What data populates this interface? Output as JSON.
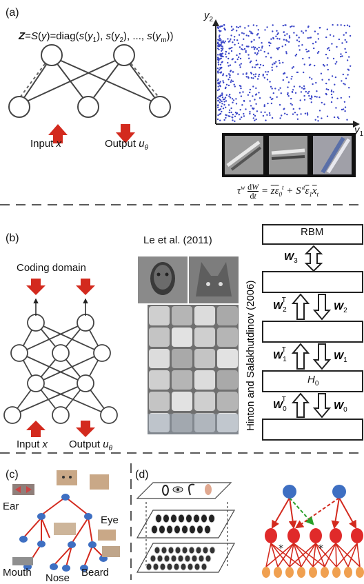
{
  "panels": {
    "a": {
      "tag": "(a)",
      "equation_top": "Z=S(y)=diag(s(y1), s(y2), ..., s(ym))",
      "input_label": "Input x",
      "output_label": "Output uθ",
      "y2_axis": "y2",
      "y1_axis": "y1",
      "bottom_equation": "τw dW/dt = z̄ε̄0t + S′t ε̄1 x̄t"
    },
    "b": {
      "tag": "(b)",
      "coding_domain": "Coding domain",
      "input_label": "Input x",
      "output_label": "Output uθ",
      "citation": "Le et al. (2011)",
      "vertical_citation": "Hinton and Salakhutdinov (2006)",
      "rbm_label": "RBM",
      "h0_label": "H0",
      "weights": [
        "W3",
        "W2T",
        "W2",
        "W1T",
        "W1",
        "W0T",
        "W0"
      ]
    },
    "c": {
      "tag": "(c)",
      "parts": [
        "Ear",
        "Eye",
        "Mouth",
        "Nose",
        "Beard"
      ]
    },
    "d": {
      "tag": "(d)"
    }
  },
  "colors": {
    "arrow_red": "#d32a1e",
    "node_blue": "#3e6fc2",
    "scatter_blue": "#3a46c8",
    "graph_red": "#e02a2a",
    "leaf_orange": "#f0a050",
    "dashed_green": "#2aa02a"
  }
}
